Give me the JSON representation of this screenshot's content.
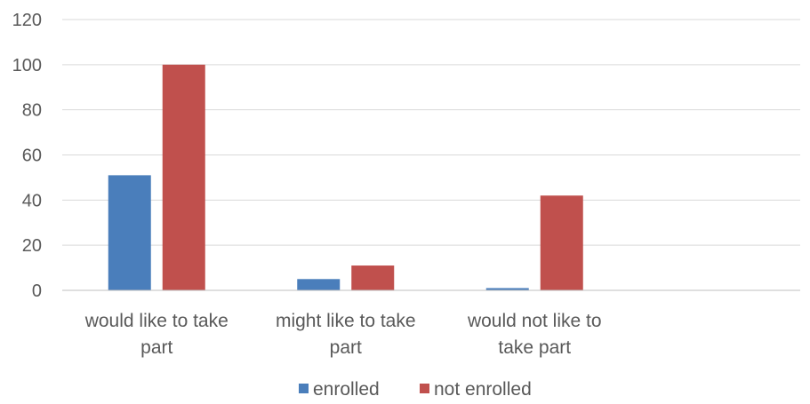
{
  "chart_data": {
    "type": "bar",
    "title": "",
    "xlabel": "",
    "ylabel": "",
    "categories": [
      [
        "would like to take",
        "part"
      ],
      [
        "might like to take",
        "part"
      ],
      [
        "would not like to",
        "take part"
      ]
    ],
    "series": [
      {
        "name": "enrolled",
        "color": "#4a7ebb",
        "values": [
          51,
          5,
          1
        ]
      },
      {
        "name": "not enrolled",
        "color": "#c0504d",
        "values": [
          100,
          11,
          42
        ]
      }
    ],
    "ylim": [
      0,
      120
    ],
    "yticks": [
      0,
      20,
      40,
      60,
      80,
      100,
      120
    ],
    "grid": true,
    "legend_position": "bottom"
  }
}
